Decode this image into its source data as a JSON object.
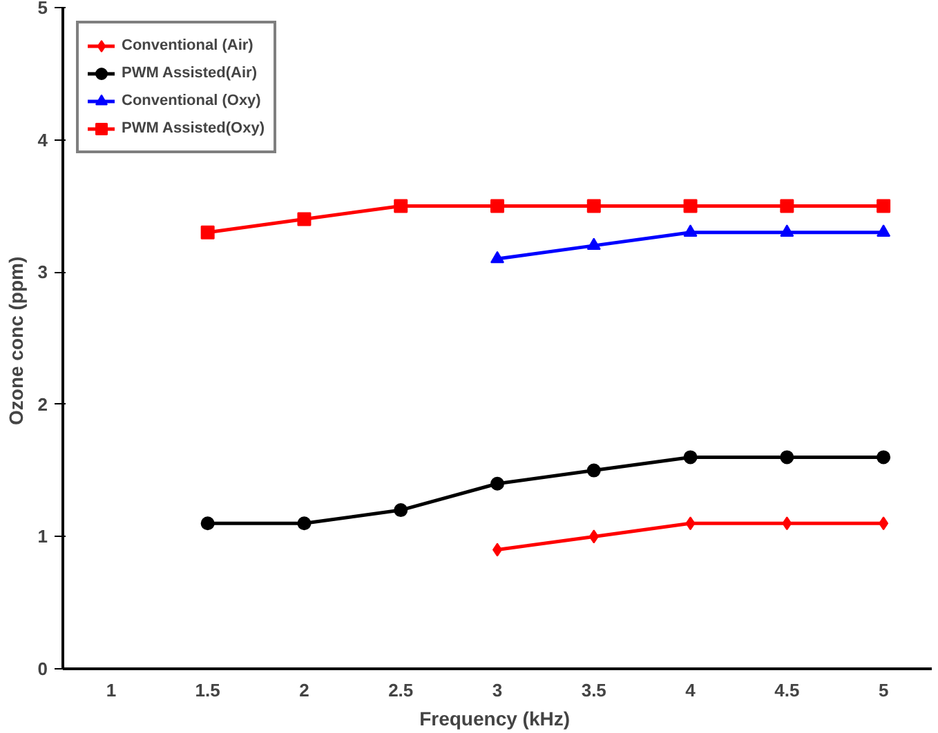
{
  "chart_data": {
    "type": "line",
    "xlabel": "Frequency  (kHz)",
    "ylabel": "Ozone conc  (ppm)",
    "categories": [
      "1",
      "1.5",
      "2",
      "2.5",
      "3",
      "3.5",
      "4",
      "4.5",
      "5"
    ],
    "ylim": [
      0,
      5
    ],
    "yticks": [
      0,
      1,
      2,
      3,
      4,
      5
    ],
    "grid": false,
    "legend": "top left",
    "series": [
      {
        "name": "Conventional (Air)",
        "color": "#ff0000",
        "marker": "diamond",
        "values": [
          null,
          null,
          null,
          null,
          0.9,
          1.0,
          1.1,
          1.1,
          1.1
        ]
      },
      {
        "name": "PWM Assisted(Air)",
        "color": "#000000",
        "marker": "circle",
        "values": [
          null,
          1.1,
          1.1,
          1.2,
          1.4,
          1.5,
          1.6,
          1.6,
          1.6
        ]
      },
      {
        "name": "Conventional (Oxy)",
        "color": "#0000ff",
        "marker": "triangle",
        "values": [
          null,
          null,
          null,
          null,
          3.1,
          3.2,
          3.3,
          3.3,
          3.3
        ]
      },
      {
        "name": "PWM Assisted(Oxy)",
        "color": "#ff0000",
        "marker": "square",
        "values": [
          null,
          3.3,
          3.4,
          3.5,
          3.5,
          3.5,
          3.5,
          3.5,
          3.5
        ]
      }
    ]
  }
}
